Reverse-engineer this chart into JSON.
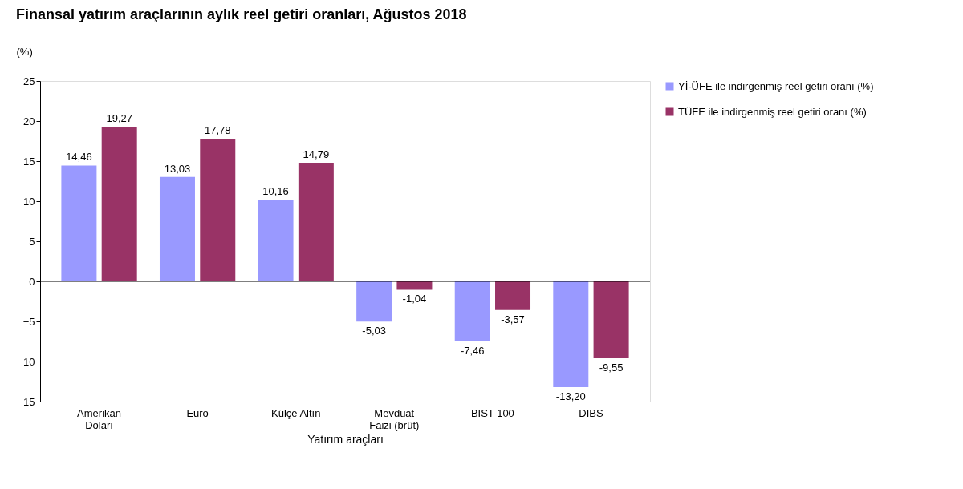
{
  "chart_data": {
    "type": "bar",
    "title": "Finansal yatırım araçlarının aylık reel getiri oranları, Ağustos 2018",
    "ylabel": "(%)",
    "xlabel": "Yatırım araçları",
    "categories": [
      "Amerikan\nDoları",
      "Euro",
      "Külçe Altın",
      "Mevduat\nFaizi (brüt)",
      "BIST 100",
      "DIBS"
    ],
    "series": [
      {
        "name": "Yİ-ÜFE ile indirgenmiş reel getiri oranı (%)",
        "color": "#9999ff",
        "values": [
          14.46,
          13.03,
          10.16,
          -5.03,
          -7.46,
          -13.2
        ],
        "value_labels": [
          "14,46",
          "13,03",
          "10,16",
          "-5,03",
          "-7,46",
          "-13,20"
        ]
      },
      {
        "name": "TÜFE ile indirgenmiş reel getiri oranı (%)",
        "color": "#993366",
        "values": [
          19.27,
          17.78,
          14.79,
          -1.04,
          -3.57,
          -9.55
        ],
        "value_labels": [
          "19,27",
          "17,78",
          "14,79",
          "-1,04",
          "-3,57",
          "-9,55"
        ]
      }
    ],
    "ylim": [
      -15,
      25
    ],
    "yticks": [
      -15,
      -10,
      -5,
      0,
      5,
      10,
      15,
      20,
      25
    ],
    "grid": false,
    "legend": "right",
    "ref_lines": [
      {
        "axis": "y",
        "value": 0,
        "color": "#000000"
      }
    ]
  }
}
